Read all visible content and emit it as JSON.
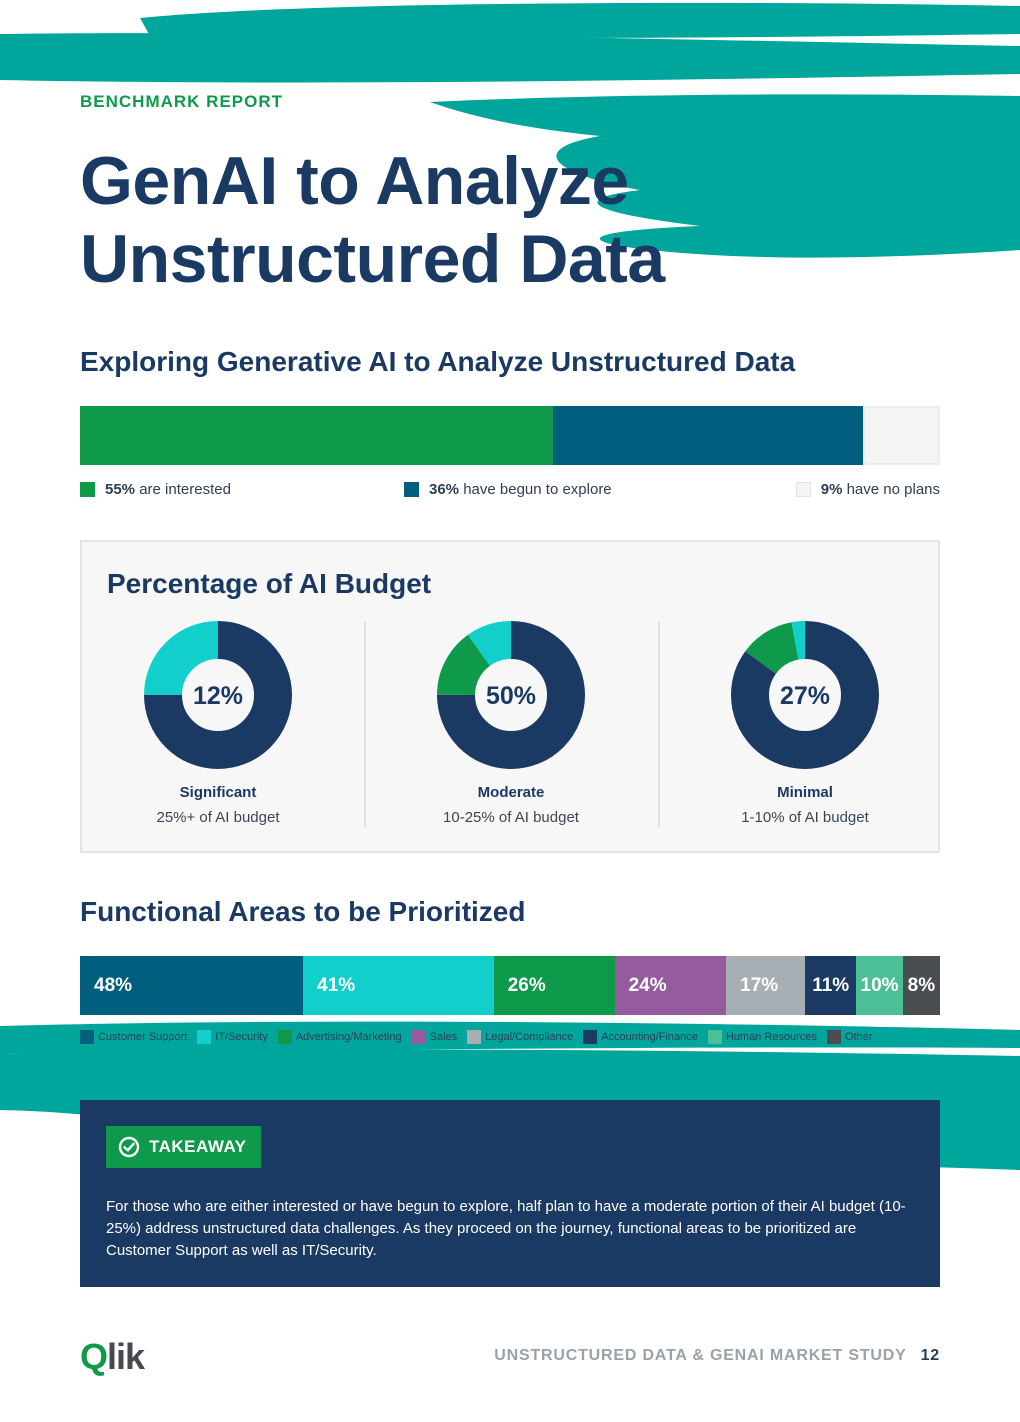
{
  "header": {
    "eyebrow": "BENCHMARK REPORT",
    "title_line1": "GenAI to Analyze",
    "title_line2": "Unstructured Data"
  },
  "exploring": {
    "heading": "Exploring Generative AI to Analyze Unstructured Data",
    "segments": [
      {
        "pct": "55%",
        "value": 55,
        "text": "are interested",
        "color": "#0f9a4b"
      },
      {
        "pct": "36%",
        "value": 36,
        "text": "have begun to explore",
        "color": "#005f7f"
      },
      {
        "pct": "9%",
        "value": 9,
        "text": "have no plans",
        "color": "#f4f4f4"
      }
    ]
  },
  "budget": {
    "heading": "Percentage of AI Budget",
    "colors": {
      "main": "#1b3a63",
      "green": "#0f9a4b",
      "teal": "#12cfcb"
    },
    "donuts": [
      {
        "center": "12%",
        "label": "Significant",
        "sub": "25%+ of AI budget",
        "slices": {
          "main": 75,
          "green": 0,
          "teal": 25
        }
      },
      {
        "center": "50%",
        "label": "Moderate",
        "sub": "10-25% of AI budget",
        "slices": {
          "main": 75,
          "green": 15,
          "teal": 10
        }
      },
      {
        "center": "27%",
        "label": "Minimal",
        "sub": "1-10% of AI budget",
        "slices": {
          "main": 85,
          "green": 12,
          "teal": 3
        }
      }
    ]
  },
  "functional": {
    "heading": "Functional Areas to be Prioritized",
    "items": [
      {
        "pct": "48%",
        "value": 48,
        "name": "Customer Support",
        "color": "#005f7f"
      },
      {
        "pct": "41%",
        "value": 41,
        "name": "IT/Security",
        "color": "#12cfcb"
      },
      {
        "pct": "26%",
        "value": 26,
        "name": "Advertising/Marketing",
        "color": "#0f9a4b"
      },
      {
        "pct": "24%",
        "value": 24,
        "name": "Sales",
        "color": "#965a9f"
      },
      {
        "pct": "17%",
        "value": 17,
        "name": "Legal/Compliance",
        "color": "#a7aeb4"
      },
      {
        "pct": "11%",
        "value": 11,
        "name": "Accounting/Finance",
        "color": "#1b3a63"
      },
      {
        "pct": "10%",
        "value": 10,
        "name": "Human Resources",
        "color": "#4dbf97"
      },
      {
        "pct": "8%",
        "value": 8,
        "name": "Other",
        "color": "#4a4e52"
      }
    ]
  },
  "takeaway": {
    "badge": "TAKEAWAY",
    "text": "For those who are either interested or have begun to explore, half plan to have a moderate portion of their AI budget (10-25%) address unstructured data challenges. As they proceed on the journey, functional areas to be prioritized are Customer Support as well as IT/Security."
  },
  "footer": {
    "logo": "Qlik",
    "study": "UNSTRUCTURED DATA & GENAI MARKET STUDY",
    "page": "12"
  }
}
